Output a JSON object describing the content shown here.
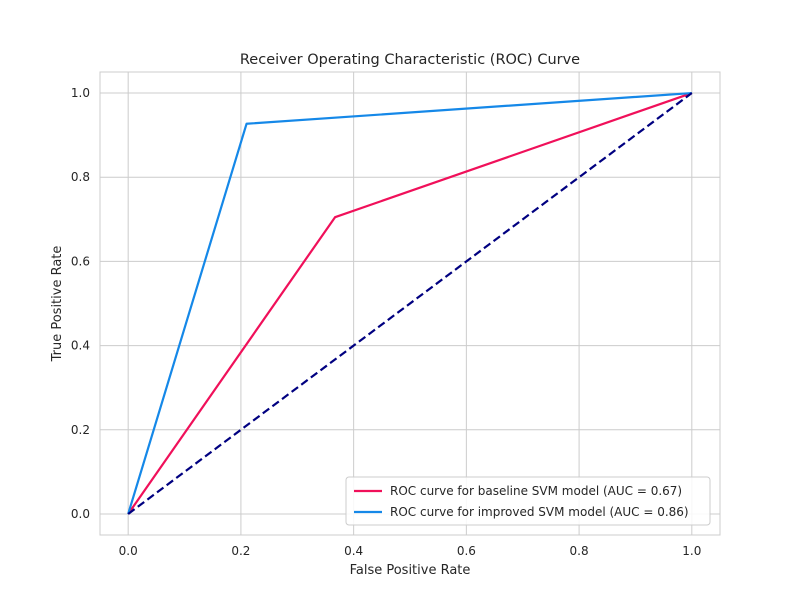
{
  "chart_data": {
    "type": "line",
    "title": "Receiver Operating Characteristic (ROC) Curve",
    "xlabel": "False Positive Rate",
    "ylabel": "True Positive Rate",
    "xlim": [
      -0.05,
      1.05
    ],
    "ylim": [
      -0.05,
      1.05
    ],
    "xticks": [
      0.0,
      0.2,
      0.4,
      0.6,
      0.8,
      1.0
    ],
    "yticks": [
      0.0,
      0.2,
      0.4,
      0.6,
      0.8,
      1.0
    ],
    "xtick_labels": [
      "0.0",
      "0.2",
      "0.4",
      "0.6",
      "0.8",
      "1.0"
    ],
    "ytick_labels": [
      "0.0",
      "0.2",
      "0.4",
      "0.6",
      "0.8",
      "1.0"
    ],
    "grid": true,
    "legend_position": "lower-right",
    "series": [
      {
        "name": "ROC curve for baseline SVM model (AUC = 0.67)",
        "color": "#f0105a",
        "style": "solid",
        "x": [
          0.0,
          0.367,
          1.0
        ],
        "y": [
          0.0,
          0.705,
          1.0
        ]
      },
      {
        "name": "ROC curve for improved SVM model (AUC = 0.86)",
        "color": "#1588e8",
        "style": "solid",
        "x": [
          0.0,
          0.21,
          1.0
        ],
        "y": [
          0.0,
          0.927,
          1.0
        ]
      },
      {
        "color": "#000080",
        "style": "dashed",
        "x": [
          0.0,
          1.0
        ],
        "y": [
          0.0,
          1.0
        ]
      }
    ]
  }
}
